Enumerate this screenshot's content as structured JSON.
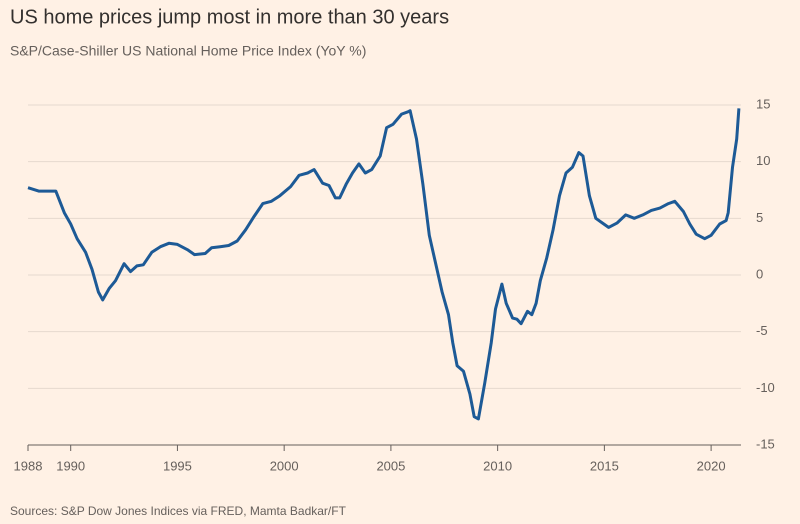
{
  "chart_data": {
    "type": "line",
    "title": "US home prices jump most in more than 30 years",
    "subtitle": "S&P/Case-Shiller US National Home Price Index (YoY %)",
    "source": "Sources: S&P Dow Jones Indices via FRED, Mamta Badkar/FT",
    "x": [
      1988.0,
      1988.5,
      1989.0,
      1989.3,
      1989.7,
      1990.0,
      1990.3,
      1990.7,
      1991.0,
      1991.3,
      1991.5,
      1991.8,
      1992.1,
      1992.5,
      1992.8,
      1993.1,
      1993.4,
      1993.8,
      1994.2,
      1994.6,
      1995.0,
      1995.5,
      1995.8,
      1996.3,
      1996.6,
      1997.0,
      1997.4,
      1997.8,
      1998.2,
      1998.6,
      1999.0,
      1999.4,
      1999.8,
      2000.3,
      2000.7,
      2001.1,
      2001.4,
      2001.8,
      2002.1,
      2002.4,
      2002.6,
      2002.9,
      2003.2,
      2003.5,
      2003.8,
      2004.1,
      2004.5,
      2004.8,
      2005.1,
      2005.5,
      2005.8,
      2005.9,
      2006.2,
      2006.5,
      2006.8,
      2007.1,
      2007.4,
      2007.7,
      2007.9,
      2008.1,
      2008.4,
      2008.7,
      2008.9,
      2009.1,
      2009.4,
      2009.7,
      2009.9,
      2010.2,
      2010.4,
      2010.7,
      2010.9,
      2011.1,
      2011.4,
      2011.6,
      2011.8,
      2012.0,
      2012.3,
      2012.6,
      2012.9,
      2013.2,
      2013.5,
      2013.8,
      2014.0,
      2014.3,
      2014.6,
      2014.9,
      2015.2,
      2015.6,
      2016.0,
      2016.4,
      2016.8,
      2017.2,
      2017.6,
      2018.0,
      2018.3,
      2018.7,
      2019.0,
      2019.3,
      2019.7,
      2020.0,
      2020.4,
      2020.7,
      2020.8,
      2021.0,
      2021.2,
      2021.3
    ],
    "series": [
      {
        "name": "YoY %",
        "color": "#1d5a96",
        "values": [
          7.7,
          7.4,
          7.4,
          7.4,
          5.5,
          4.5,
          3.2,
          2.0,
          0.5,
          -1.5,
          -2.2,
          -1.2,
          -0.5,
          1.0,
          0.3,
          0.8,
          0.9,
          2.0,
          2.5,
          2.8,
          2.7,
          2.2,
          1.8,
          1.9,
          2.4,
          2.5,
          2.6,
          3.0,
          4.0,
          5.2,
          6.3,
          6.5,
          7.0,
          7.8,
          8.8,
          9.0,
          9.3,
          8.1,
          7.9,
          6.8,
          6.8,
          8.0,
          9.0,
          9.8,
          9.0,
          9.3,
          10.5,
          13.0,
          13.3,
          14.2,
          14.4,
          14.5,
          12.0,
          8.0,
          3.5,
          1.0,
          -1.5,
          -3.5,
          -6.0,
          -8.0,
          -8.5,
          -10.5,
          -12.5,
          -12.7,
          -9.5,
          -6.0,
          -3.0,
          -0.8,
          -2.5,
          -3.8,
          -3.9,
          -4.3,
          -3.2,
          -3.5,
          -2.5,
          -0.5,
          1.5,
          4.0,
          7.0,
          9.0,
          9.5,
          10.8,
          10.5,
          7.0,
          5.0,
          4.6,
          4.2,
          4.6,
          5.3,
          5.0,
          5.3,
          5.7,
          5.9,
          6.3,
          6.5,
          5.6,
          4.5,
          3.6,
          3.2,
          3.5,
          4.5,
          4.8,
          5.5,
          9.5,
          12.0,
          14.7
        ]
      }
    ],
    "xlim": [
      1988,
      2021.4
    ],
    "ylim": [
      -15,
      16
    ],
    "xticks": [
      1988,
      1990,
      1995,
      2000,
      2005,
      2010,
      2015,
      2020
    ],
    "yticks": [
      -15,
      -10,
      -5,
      0,
      5,
      10,
      15
    ],
    "grid": true
  }
}
